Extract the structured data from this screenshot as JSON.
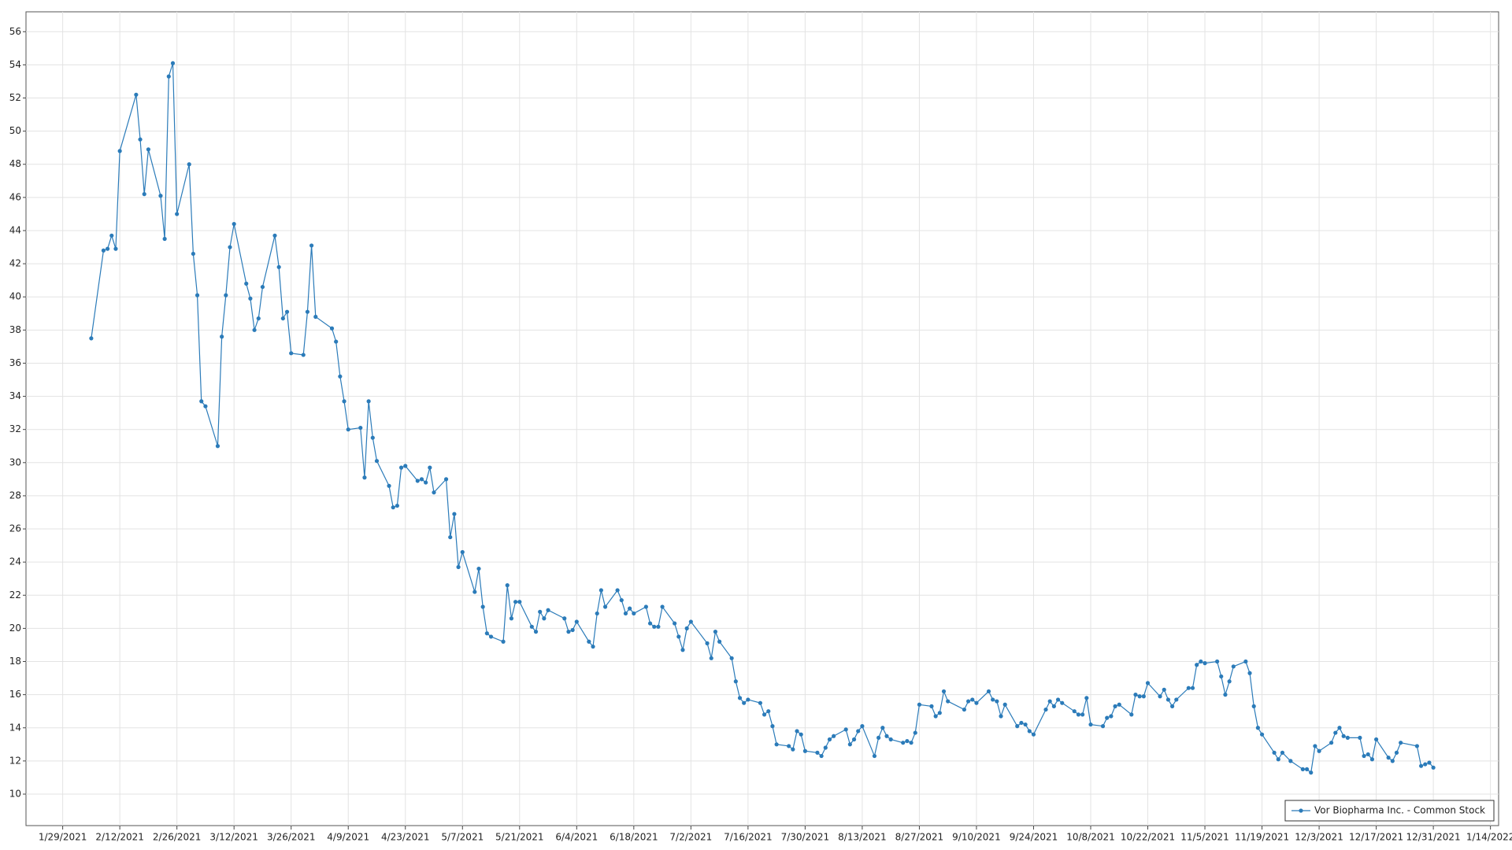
{
  "chart_data": {
    "type": "line",
    "xlim": [
      "1/20/2021",
      "1/16/2022"
    ],
    "xticks": [
      "1/29/2021",
      "2/12/2021",
      "2/26/2021",
      "3/12/2021",
      "3/26/2021",
      "4/9/2021",
      "4/23/2021",
      "5/7/2021",
      "5/21/2021",
      "6/4/2021",
      "6/18/2021",
      "7/2/2021",
      "7/16/2021",
      "7/30/2021",
      "8/13/2021",
      "8/27/2021",
      "9/10/2021",
      "9/24/2021",
      "10/8/2021",
      "10/22/2021",
      "11/5/2021",
      "11/19/2021",
      "12/3/2021",
      "12/17/2021",
      "12/31/2021",
      "1/14/2022"
    ],
    "ylim": [
      8.1,
      57.2
    ],
    "yticks": [
      10,
      12,
      14,
      16,
      18,
      20,
      22,
      24,
      26,
      28,
      30,
      32,
      34,
      36,
      38,
      40,
      42,
      44,
      46,
      48,
      50,
      52,
      54,
      56
    ],
    "grid": true,
    "legend": "lower right",
    "x": [
      "2/5/2021",
      "2/8/2021",
      "2/9/2021",
      "2/10/2021",
      "2/11/2021",
      "2/12/2021",
      "2/16/2021",
      "2/17/2021",
      "2/18/2021",
      "2/19/2021",
      "2/22/2021",
      "2/23/2021",
      "2/24/2021",
      "2/25/2021",
      "2/26/2021",
      "3/1/2021",
      "3/2/2021",
      "3/3/2021",
      "3/4/2021",
      "3/5/2021",
      "3/8/2021",
      "3/9/2021",
      "3/10/2021",
      "3/11/2021",
      "3/12/2021",
      "3/15/2021",
      "3/16/2021",
      "3/17/2021",
      "3/18/2021",
      "3/19/2021",
      "3/22/2021",
      "3/23/2021",
      "3/24/2021",
      "3/25/2021",
      "3/26/2021",
      "3/29/2021",
      "3/30/2021",
      "3/31/2021",
      "4/1/2021",
      "4/5/2021",
      "4/6/2021",
      "4/7/2021",
      "4/8/2021",
      "4/9/2021",
      "4/12/2021",
      "4/13/2021",
      "4/14/2021",
      "4/15/2021",
      "4/16/2021",
      "4/19/2021",
      "4/20/2021",
      "4/21/2021",
      "4/22/2021",
      "4/23/2021",
      "4/26/2021",
      "4/27/2021",
      "4/28/2021",
      "4/29/2021",
      "4/30/2021",
      "5/3/2021",
      "5/4/2021",
      "5/5/2021",
      "5/6/2021",
      "5/7/2021",
      "5/10/2021",
      "5/11/2021",
      "5/12/2021",
      "5/13/2021",
      "5/14/2021",
      "5/17/2021",
      "5/18/2021",
      "5/19/2021",
      "5/20/2021",
      "5/21/2021",
      "5/24/2021",
      "5/25/2021",
      "5/26/2021",
      "5/27/2021",
      "5/28/2021",
      "6/1/2021",
      "6/2/2021",
      "6/3/2021",
      "6/4/2021",
      "6/7/2021",
      "6/8/2021",
      "6/9/2021",
      "6/10/2021",
      "6/11/2021",
      "6/14/2021",
      "6/15/2021",
      "6/16/2021",
      "6/17/2021",
      "6/18/2021",
      "6/21/2021",
      "6/22/2021",
      "6/23/2021",
      "6/24/2021",
      "6/25/2021",
      "6/28/2021",
      "6/29/2021",
      "6/30/2021",
      "7/1/2021",
      "7/2/2021",
      "7/6/2021",
      "7/7/2021",
      "7/8/2021",
      "7/9/2021",
      "7/12/2021",
      "7/13/2021",
      "7/14/2021",
      "7/15/2021",
      "7/16/2021",
      "7/19/2021",
      "7/20/2021",
      "7/21/2021",
      "7/22/2021",
      "7/23/2021",
      "7/26/2021",
      "7/27/2021",
      "7/28/2021",
      "7/29/2021",
      "7/30/2021",
      "8/2/2021",
      "8/3/2021",
      "8/4/2021",
      "8/5/2021",
      "8/6/2021",
      "8/9/2021",
      "8/10/2021",
      "8/11/2021",
      "8/12/2021",
      "8/13/2021",
      "8/16/2021",
      "8/17/2021",
      "8/18/2021",
      "8/19/2021",
      "8/20/2021",
      "8/23/2021",
      "8/24/2021",
      "8/25/2021",
      "8/26/2021",
      "8/27/2021",
      "8/30/2021",
      "8/31/2021",
      "9/1/2021",
      "9/2/2021",
      "9/3/2021",
      "9/7/2021",
      "9/8/2021",
      "9/9/2021",
      "9/10/2021",
      "9/13/2021",
      "9/14/2021",
      "9/15/2021",
      "9/16/2021",
      "9/17/2021",
      "9/20/2021",
      "9/21/2021",
      "9/22/2021",
      "9/23/2021",
      "9/24/2021",
      "9/27/2021",
      "9/28/2021",
      "9/29/2021",
      "9/30/2021",
      "10/1/2021",
      "10/4/2021",
      "10/5/2021",
      "10/6/2021",
      "10/7/2021",
      "10/8/2021",
      "10/11/2021",
      "10/12/2021",
      "10/13/2021",
      "10/14/2021",
      "10/15/2021",
      "10/18/2021",
      "10/19/2021",
      "10/20/2021",
      "10/21/2021",
      "10/22/2021",
      "10/25/2021",
      "10/26/2021",
      "10/27/2021",
      "10/28/2021",
      "10/29/2021",
      "11/1/2021",
      "11/2/2021",
      "11/3/2021",
      "11/4/2021",
      "11/5/2021",
      "11/8/2021",
      "11/9/2021",
      "11/10/2021",
      "11/11/2021",
      "11/12/2021",
      "11/15/2021",
      "11/16/2021",
      "11/17/2021",
      "11/18/2021",
      "11/19/2021",
      "11/22/2021",
      "11/23/2021",
      "11/24/2021",
      "11/26/2021",
      "11/29/2021",
      "11/30/2021",
      "12/1/2021",
      "12/2/2021",
      "12/3/2021",
      "12/6/2021",
      "12/7/2021",
      "12/8/2021",
      "12/9/2021",
      "12/10/2021",
      "12/13/2021",
      "12/14/2021",
      "12/15/2021",
      "12/16/2021",
      "12/17/2021",
      "12/20/2021",
      "12/21/2021",
      "12/22/2021",
      "12/23/2021",
      "12/27/2021",
      "12/28/2021",
      "12/29/2021",
      "12/30/2021",
      "12/31/2021"
    ],
    "series": [
      {
        "name": "Vor Biopharma Inc. - Common Stock",
        "color": "#2b7bb9",
        "values": [
          37.5,
          42.8,
          42.9,
          43.7,
          42.9,
          48.8,
          52.2,
          49.5,
          46.2,
          48.9,
          46.1,
          43.5,
          53.3,
          54.1,
          45.0,
          48.0,
          42.6,
          40.1,
          33.7,
          33.4,
          31.0,
          37.6,
          40.1,
          43.0,
          44.4,
          40.8,
          39.9,
          38.0,
          38.7,
          40.6,
          43.7,
          41.8,
          38.7,
          39.1,
          36.6,
          36.5,
          39.1,
          43.1,
          38.8,
          38.1,
          37.3,
          35.2,
          33.7,
          32.0,
          32.1,
          29.1,
          33.7,
          31.5,
          30.1,
          28.6,
          27.3,
          27.4,
          29.7,
          29.8,
          28.9,
          29.0,
          28.8,
          29.7,
          28.2,
          29.0,
          25.5,
          26.9,
          23.7,
          24.6,
          22.2,
          23.6,
          21.3,
          19.7,
          19.5,
          19.2,
          22.6,
          20.6,
          21.6,
          21.6,
          20.1,
          19.8,
          21.0,
          20.6,
          21.1,
          20.6,
          19.8,
          19.9,
          20.4,
          19.2,
          18.9,
          20.9,
          22.3,
          21.3,
          22.3,
          21.7,
          20.9,
          21.2,
          20.9,
          21.3,
          20.3,
          20.1,
          20.1,
          21.3,
          20.3,
          19.5,
          18.7,
          20.0,
          20.4,
          19.1,
          18.2,
          19.8,
          19.2,
          18.2,
          16.8,
          15.8,
          15.5,
          15.7,
          15.5,
          14.8,
          15.0,
          14.1,
          13.0,
          12.9,
          12.7,
          13.8,
          13.6,
          12.6,
          12.5,
          12.3,
          12.8,
          13.3,
          13.5,
          13.9,
          13.0,
          13.3,
          13.8,
          14.1,
          12.3,
          13.4,
          14.0,
          13.5,
          13.3,
          13.1,
          13.2,
          13.1,
          13.7,
          15.4,
          15.3,
          14.7,
          14.9,
          16.2,
          15.6,
          15.1,
          15.6,
          15.7,
          15.5,
          16.2,
          15.7,
          15.6,
          14.7,
          15.4,
          14.1,
          14.3,
          14.2,
          13.8,
          13.6,
          15.1,
          15.6,
          15.3,
          15.7,
          15.5,
          15.0,
          14.8,
          14.8,
          15.8,
          14.2,
          14.1,
          14.6,
          14.7,
          15.3,
          15.4,
          14.8,
          16.0,
          15.9,
          15.9,
          16.7,
          15.9,
          16.3,
          15.7,
          15.3,
          15.7,
          16.4,
          16.4,
          17.8,
          18.0,
          17.9,
          18.0,
          17.1,
          16.0,
          16.8,
          17.7,
          18.0,
          17.3,
          15.3,
          14.0,
          13.6,
          12.5,
          12.1,
          12.5,
          12.0,
          11.5,
          11.5,
          11.3,
          12.9,
          12.6,
          13.1,
          13.7,
          14.0,
          13.5,
          13.4,
          13.4,
          12.3,
          12.4,
          12.1,
          13.3,
          12.2,
          12.0,
          12.5,
          13.1,
          12.9,
          11.7,
          11.8,
          11.9,
          11.6
        ]
      }
    ]
  }
}
